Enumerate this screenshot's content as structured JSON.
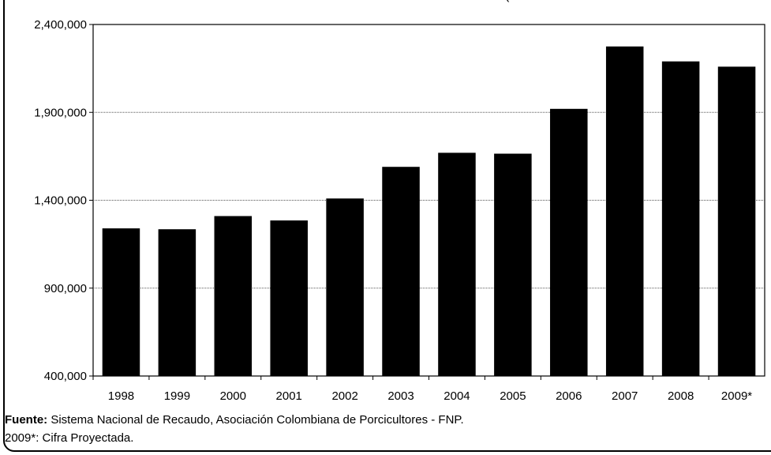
{
  "chart_data": {
    "type": "bar",
    "title": "",
    "top_title_fragment": "(",
    "xlabel": "",
    "ylabel": "",
    "categories": [
      "1998",
      "1999",
      "2000",
      "2001",
      "2002",
      "2003",
      "2004",
      "2005",
      "2006",
      "2007",
      "2008",
      "2009*"
    ],
    "values": [
      1240000,
      1235000,
      1310000,
      1285000,
      1410000,
      1590000,
      1670000,
      1665000,
      1920000,
      2275000,
      2190000,
      2160000
    ],
    "ylim": [
      400000,
      2400000
    ],
    "yticks": [
      400000,
      900000,
      1400000,
      1900000,
      2400000
    ],
    "ytick_labels": [
      "400,000",
      "900,000",
      "1,400,000",
      "1,900,000",
      "2,400,000"
    ],
    "grid": "horizontal dotted",
    "legend": "none",
    "bar_color": "#000000"
  },
  "footnote": {
    "source_label": "Fuente:",
    "source_text": " Sistema Nacional de Recaudo, Asociación Colombiana de Porcicultores - FNP.",
    "projection_note": "2009*: Cifra Proyectada."
  }
}
